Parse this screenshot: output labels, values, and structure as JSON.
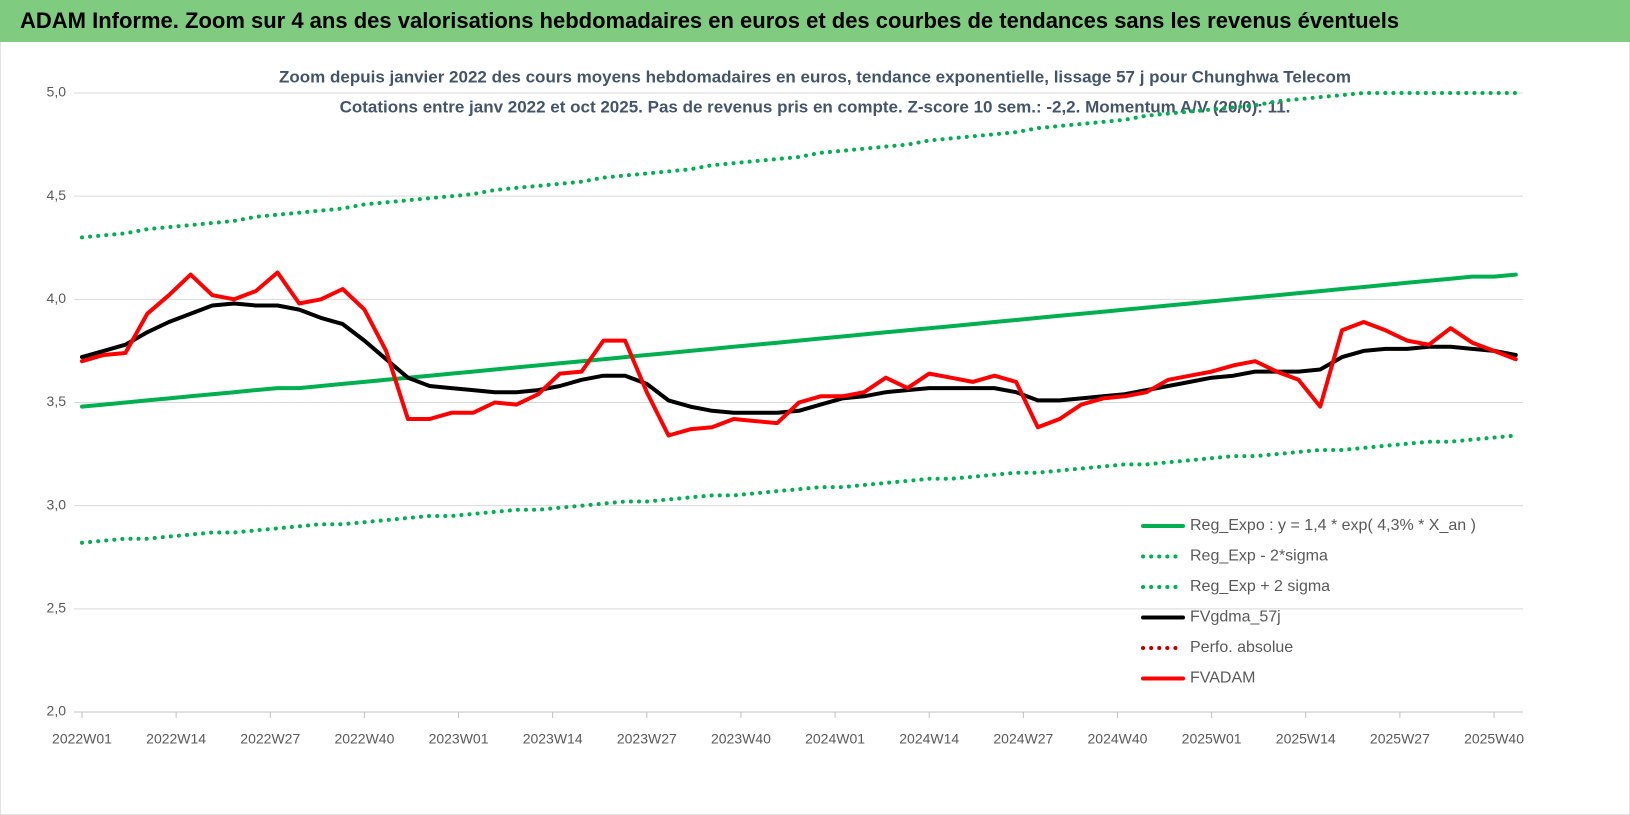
{
  "header": {
    "title": "ADAM Informe. Zoom sur 4 ans des valorisations hebdomadaires en euros et des courbes de tendances sans les revenus éventuels"
  },
  "chart_data": {
    "type": "line",
    "title": "Zoom depuis janvier 2022 des cours moyens hebdomadaires en euros, tendance exponentielle, lissage 57 j pour Chunghwa Telecom",
    "subtitle": "Cotations entre janv 2022 et oct 2025. Pas de revenus pris en compte. Z-score 10 sem.: -2,2. Momentum A/V (20/0): 11.",
    "x": [
      0,
      3,
      6,
      9,
      12,
      15,
      18,
      21,
      24,
      27,
      30,
      33,
      36,
      39,
      42,
      45,
      48,
      51,
      54,
      57,
      60,
      63,
      66,
      69,
      72,
      75,
      78,
      81,
      84,
      87,
      90,
      93,
      96,
      99,
      102,
      105,
      108,
      111,
      114,
      117,
      120,
      123,
      126,
      129,
      132,
      135,
      138,
      141,
      144,
      147,
      150,
      153,
      156,
      159,
      162,
      165,
      168,
      171,
      174,
      177,
      180,
      183,
      186,
      189,
      192,
      195,
      198
    ],
    "xlim": [
      0,
      199
    ],
    "xticks": [
      {
        "value": 0,
        "label": "2022W01"
      },
      {
        "value": 13,
        "label": "2022W14"
      },
      {
        "value": 26,
        "label": "2022W27"
      },
      {
        "value": 39,
        "label": "2022W40"
      },
      {
        "value": 52,
        "label": "2023W01"
      },
      {
        "value": 65,
        "label": "2023W14"
      },
      {
        "value": 78,
        "label": "2023W27"
      },
      {
        "value": 91,
        "label": "2023W40"
      },
      {
        "value": 104,
        "label": "2024W01"
      },
      {
        "value": 117,
        "label": "2024W14"
      },
      {
        "value": 130,
        "label": "2024W27"
      },
      {
        "value": 143,
        "label": "2024W40"
      },
      {
        "value": 156,
        "label": "2025W01"
      },
      {
        "value": 169,
        "label": "2025W14"
      },
      {
        "value": 182,
        "label": "2025W27"
      },
      {
        "value": 195,
        "label": "2025W40"
      }
    ],
    "ylim": [
      2,
      5
    ],
    "yticks": [
      {
        "value": 2,
        "label": "2,0"
      },
      {
        "value": 2.5,
        "label": "2,5"
      },
      {
        "value": 3,
        "label": "3,0"
      },
      {
        "value": 3.5,
        "label": "3,5"
      },
      {
        "value": 4,
        "label": "4,0"
      },
      {
        "value": 4.5,
        "label": "4,5"
      },
      {
        "value": 5,
        "label": "5,0"
      }
    ],
    "grid": true,
    "legend": "bottom-right",
    "series": [
      {
        "name": "Reg_Expo : y = 1,4 * exp( 4,3% *  X_an )",
        "color": "#00b050",
        "line_style": "solid",
        "values": [
          3.48,
          3.49,
          3.5,
          3.51,
          3.52,
          3.53,
          3.54,
          3.55,
          3.56,
          3.57,
          3.57,
          3.58,
          3.59,
          3.6,
          3.61,
          3.62,
          3.63,
          3.64,
          3.65,
          3.66,
          3.67,
          3.68,
          3.69,
          3.7,
          3.71,
          3.72,
          3.73,
          3.74,
          3.75,
          3.76,
          3.77,
          3.78,
          3.79,
          3.8,
          3.81,
          3.82,
          3.83,
          3.84,
          3.85,
          3.86,
          3.87,
          3.88,
          3.89,
          3.9,
          3.91,
          3.92,
          3.93,
          3.94,
          3.95,
          3.96,
          3.97,
          3.98,
          3.99,
          4.0,
          4.01,
          4.02,
          4.03,
          4.04,
          4.05,
          4.06,
          4.07,
          4.08,
          4.09,
          4.1,
          4.11,
          4.11,
          4.12
        ]
      },
      {
        "name": "Reg_Exp - 2*sigma",
        "color": "#00b050",
        "line_style": "dotted",
        "values": [
          2.82,
          2.83,
          2.84,
          2.84,
          2.85,
          2.86,
          2.87,
          2.87,
          2.88,
          2.89,
          2.9,
          2.91,
          2.91,
          2.92,
          2.93,
          2.94,
          2.95,
          2.95,
          2.96,
          2.97,
          2.98,
          2.98,
          2.99,
          3.0,
          3.01,
          3.02,
          3.02,
          3.03,
          3.04,
          3.05,
          3.05,
          3.06,
          3.07,
          3.08,
          3.09,
          3.09,
          3.1,
          3.11,
          3.12,
          3.13,
          3.13,
          3.14,
          3.15,
          3.16,
          3.16,
          3.17,
          3.18,
          3.19,
          3.2,
          3.2,
          3.21,
          3.22,
          3.23,
          3.24,
          3.24,
          3.25,
          3.26,
          3.27,
          3.27,
          3.28,
          3.29,
          3.3,
          3.31,
          3.31,
          3.32,
          3.33,
          3.34
        ]
      },
      {
        "name": "Reg_Exp + 2 sigma",
        "color": "#00b050",
        "line_style": "dotted",
        "values": [
          4.3,
          4.31,
          4.32,
          4.34,
          4.35,
          4.36,
          4.37,
          4.38,
          4.4,
          4.41,
          4.42,
          4.43,
          4.44,
          4.46,
          4.47,
          4.48,
          4.49,
          4.5,
          4.51,
          4.53,
          4.54,
          4.55,
          4.56,
          4.57,
          4.59,
          4.6,
          4.61,
          4.62,
          4.63,
          4.65,
          4.66,
          4.67,
          4.68,
          4.69,
          4.71,
          4.72,
          4.73,
          4.74,
          4.75,
          4.77,
          4.78,
          4.79,
          4.8,
          4.81,
          4.83,
          4.84,
          4.85,
          4.86,
          4.87,
          4.89,
          4.9,
          4.91,
          4.92,
          4.93,
          4.94,
          4.96,
          4.97,
          4.98,
          4.99,
          5.0,
          5.0,
          5.0,
          5.0,
          5.0,
          5.0,
          5.0,
          5.0
        ]
      },
      {
        "name": "FVgdma_57j",
        "color": "#000000",
        "line_style": "solid",
        "values": [
          3.72,
          3.75,
          3.78,
          3.84,
          3.89,
          3.93,
          3.97,
          3.98,
          3.97,
          3.97,
          3.95,
          3.91,
          3.88,
          3.8,
          3.71,
          3.62,
          3.58,
          3.57,
          3.56,
          3.55,
          3.55,
          3.56,
          3.58,
          3.61,
          3.63,
          3.63,
          3.59,
          3.51,
          3.48,
          3.46,
          3.45,
          3.45,
          3.45,
          3.46,
          3.49,
          3.52,
          3.53,
          3.55,
          3.56,
          3.57,
          3.57,
          3.57,
          3.57,
          3.55,
          3.51,
          3.51,
          3.52,
          3.53,
          3.54,
          3.56,
          3.58,
          3.6,
          3.62,
          3.63,
          3.65,
          3.65,
          3.65,
          3.66,
          3.72,
          3.75,
          3.76,
          3.76,
          3.77,
          3.77,
          3.76,
          3.75,
          3.73
        ]
      },
      {
        "name": "Perfo. absolue",
        "color": "#c00000",
        "line_style": "dotted",
        "values": [
          null,
          null,
          null,
          null,
          null,
          null,
          null,
          null,
          null,
          null,
          null,
          null,
          null,
          null,
          null,
          null,
          null,
          null,
          null,
          null,
          null,
          null,
          null,
          null,
          null,
          null,
          null,
          null,
          null,
          null,
          null,
          null,
          null,
          null,
          null,
          null,
          null,
          null,
          null,
          null,
          null,
          null,
          null,
          null,
          null,
          null,
          null,
          null,
          null,
          null,
          null,
          null,
          null,
          null,
          null,
          null,
          null,
          null,
          null,
          null,
          null,
          null,
          null,
          null,
          null,
          null,
          null
        ]
      },
      {
        "name": "FVADAM",
        "color": "#ff0000",
        "line_style": "solid",
        "values": [
          3.7,
          3.73,
          3.74,
          3.93,
          4.02,
          4.12,
          4.02,
          4.0,
          4.04,
          4.13,
          3.98,
          4.0,
          4.05,
          3.95,
          3.75,
          3.42,
          3.42,
          3.45,
          3.45,
          3.5,
          3.49,
          3.54,
          3.64,
          3.65,
          3.8,
          3.8,
          3.55,
          3.34,
          3.37,
          3.38,
          3.42,
          3.41,
          3.4,
          3.5,
          3.53,
          3.53,
          3.55,
          3.62,
          3.57,
          3.64,
          3.62,
          3.6,
          3.63,
          3.6,
          3.38,
          3.42,
          3.49,
          3.52,
          3.53,
          3.55,
          3.61,
          3.63,
          3.65,
          3.68,
          3.7,
          3.65,
          3.61,
          3.48,
          3.85,
          3.89,
          3.85,
          3.8,
          3.78,
          3.86,
          3.79,
          3.75,
          3.71
        ]
      }
    ]
  }
}
